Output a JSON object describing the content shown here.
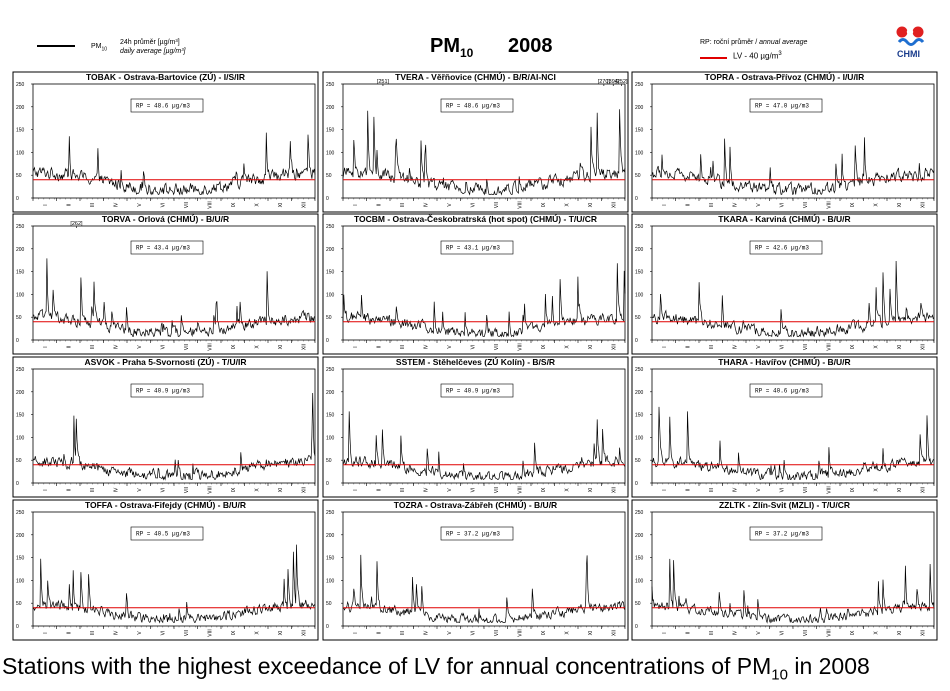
{
  "header": {
    "pm_label": "PM",
    "pm_sub": "10",
    "legend_line1": "24h průměr [µg/m³]",
    "legend_line2": "daily average [µg/m³]",
    "title": "PM",
    "title_sub": "10",
    "year": "2008",
    "rp_label_a": "RP: roční průměr / ",
    "rp_label_b": "annual average",
    "lv_label": "LV - 40 µg/m",
    "lv_sup": "3",
    "logo_text": "CHMI"
  },
  "caption": {
    "text": "Stations with the highest exceedance of LV for annual concentrations of PM",
    "sub": "10",
    "suffix": " in 2008"
  },
  "colors": {
    "series": "#000000",
    "limit": "#e00000",
    "frame": "#000000"
  },
  "chart_data": [
    {
      "type": "line",
      "title": "TOBAK - Ostrava-Bartovice (ZÚ) - I/S/IR",
      "rp": "RP = 48.6 µg/m3",
      "annual_mean": 48.6,
      "limit": 40,
      "ylim": [
        0,
        250
      ],
      "yticks": [
        "0",
        "50",
        "100",
        "150",
        "200",
        "250"
      ],
      "xticks": [
        "I",
        "II",
        "III",
        "IV",
        "V",
        "VI",
        "VII",
        "VIII",
        "IX",
        "X",
        "XI",
        "XII"
      ],
      "peaks": []
    },
    {
      "type": "line",
      "title": "TVERA - Věřňovice (CHMÚ) - B/R/AI-NCI",
      "rp": "RP = 48.6 µg/m3",
      "annual_mean": 48.6,
      "limit": 40,
      "ylim": [
        0,
        250
      ],
      "yticks": [
        "0",
        "50",
        "100",
        "150",
        "200",
        "250"
      ],
      "xticks": [
        "I",
        "II",
        "III",
        "IV",
        "V",
        "VI",
        "VII",
        "VIII",
        "IX",
        "X",
        "XI",
        "XII"
      ],
      "peaks": [
        {
          "label": "[251]",
          "month": 1.7
        },
        {
          "label": "[270]",
          "month": 11.1
        },
        {
          "label": "[394]",
          "month": 11.5
        },
        {
          "label": "[252]",
          "month": 11.85
        }
      ]
    },
    {
      "type": "line",
      "title": "TOPRA - Ostrava-Přívoz (CHMÚ) - I/U/IR",
      "rp": "RP = 47.0 µg/m3",
      "annual_mean": 47.0,
      "limit": 40,
      "ylim": [
        0,
        250
      ],
      "yticks": [
        "0",
        "50",
        "100",
        "150",
        "200",
        "250"
      ],
      "xticks": [
        "I",
        "II",
        "III",
        "IV",
        "V",
        "VI",
        "VII",
        "VIII",
        "IX",
        "X",
        "XI",
        "XII"
      ],
      "peaks": []
    },
    {
      "type": "line",
      "title": "TORVA - Orlová (CHMÚ) - B/U/R",
      "rp": "RP = 43.4 µg/m3",
      "annual_mean": 43.4,
      "limit": 40,
      "ylim": [
        0,
        250
      ],
      "yticks": [
        "0",
        "50",
        "100",
        "150",
        "200",
        "250"
      ],
      "xticks": [
        "I",
        "II",
        "III",
        "IV",
        "V",
        "VI",
        "VII",
        "VIII",
        "IX",
        "X",
        "XI",
        "XII"
      ],
      "peaks": [
        {
          "label": "[262]",
          "month": 1.85
        }
      ]
    },
    {
      "type": "line",
      "title": "TOCBM - Ostrava-Českobratrská (hot spot) (CHMÚ) - T/U/CR",
      "rp": "RP = 43.1 µg/m3",
      "annual_mean": 43.1,
      "limit": 40,
      "ylim": [
        0,
        250
      ],
      "yticks": [
        "0",
        "50",
        "100",
        "150",
        "200",
        "250"
      ],
      "xticks": [
        "I",
        "II",
        "III",
        "IV",
        "V",
        "VI",
        "VII",
        "VIII",
        "IX",
        "X",
        "XI",
        "XII"
      ],
      "peaks": []
    },
    {
      "type": "line",
      "title": "TKARA - Karviná (CHMÚ) - B/U/R",
      "rp": "RP = 42.6 µg/m3",
      "annual_mean": 42.6,
      "limit": 40,
      "ylim": [
        0,
        250
      ],
      "yticks": [
        "0",
        "50",
        "100",
        "150",
        "200",
        "250"
      ],
      "xticks": [
        "I",
        "II",
        "III",
        "IV",
        "V",
        "VI",
        "VII",
        "VIII",
        "IX",
        "X",
        "XI",
        "XII"
      ],
      "peaks": []
    },
    {
      "type": "line",
      "title": "ASVOK - Praha 5-Svornosti (ZÚ) - T/U/IR",
      "rp": "RP = 40.9 µg/m3",
      "annual_mean": 40.9,
      "limit": 40,
      "ylim": [
        0,
        250
      ],
      "yticks": [
        "0",
        "50",
        "100",
        "150",
        "200",
        "250"
      ],
      "xticks": [
        "I",
        "II",
        "III",
        "IV",
        "V",
        "VI",
        "VII",
        "VIII",
        "IX",
        "X",
        "XI",
        "XII"
      ],
      "peaks": []
    },
    {
      "type": "line",
      "title": "SSTEM - Stěhelčeves (ZÚ Kolín) - B/S/R",
      "rp": "RP = 40.9 µg/m3",
      "annual_mean": 40.9,
      "limit": 40,
      "ylim": [
        0,
        250
      ],
      "yticks": [
        "0",
        "50",
        "100",
        "150",
        "200",
        "250"
      ],
      "xticks": [
        "I",
        "II",
        "III",
        "IV",
        "V",
        "VI",
        "VII",
        "VIII",
        "IX",
        "X",
        "XI",
        "XII"
      ],
      "peaks": []
    },
    {
      "type": "line",
      "title": "THARA - Havířov (CHMÚ) - B/U/R",
      "rp": "RP = 40.6 µg/m3",
      "annual_mean": 40.6,
      "limit": 40,
      "ylim": [
        0,
        250
      ],
      "yticks": [
        "0",
        "50",
        "100",
        "150",
        "200",
        "250"
      ],
      "xticks": [
        "I",
        "II",
        "III",
        "IV",
        "V",
        "VI",
        "VII",
        "VIII",
        "IX",
        "X",
        "XI",
        "XII"
      ],
      "peaks": []
    },
    {
      "type": "line",
      "title": "TOFFA - Ostrava-Fifejdy (CHMÚ) - B/U/R",
      "rp": "RP = 40.5 µg/m3",
      "annual_mean": 40.5,
      "limit": 40,
      "ylim": [
        0,
        250
      ],
      "yticks": [
        "0",
        "50",
        "100",
        "150",
        "200",
        "250"
      ],
      "xticks": [
        "I",
        "II",
        "III",
        "IV",
        "V",
        "VI",
        "VII",
        "VIII",
        "IX",
        "X",
        "XI",
        "XII"
      ],
      "peaks": []
    },
    {
      "type": "line",
      "title": "TOZRA - Ostrava-Zábřeh (CHMÚ) - B/U/R",
      "rp": "RP = 37.2 µg/m3",
      "annual_mean": 37.2,
      "limit": 40,
      "ylim": [
        0,
        250
      ],
      "yticks": [
        "0",
        "50",
        "100",
        "150",
        "200",
        "250"
      ],
      "xticks": [
        "I",
        "II",
        "III",
        "IV",
        "V",
        "VI",
        "VII",
        "VIII",
        "IX",
        "X",
        "XI",
        "XII"
      ],
      "peaks": []
    },
    {
      "type": "line",
      "title": "ZZLTK - Zlín-Svit (MZLI) - T/U/CR",
      "rp": "RP = 37.2 µg/m3",
      "annual_mean": 37.2,
      "limit": 40,
      "ylim": [
        0,
        250
      ],
      "yticks": [
        "0",
        "50",
        "100",
        "150",
        "200",
        "250"
      ],
      "xticks": [
        "I",
        "II",
        "III",
        "IV",
        "V",
        "VI",
        "VII",
        "VIII",
        "IX",
        "X",
        "XI",
        "XII"
      ],
      "peaks": []
    }
  ]
}
